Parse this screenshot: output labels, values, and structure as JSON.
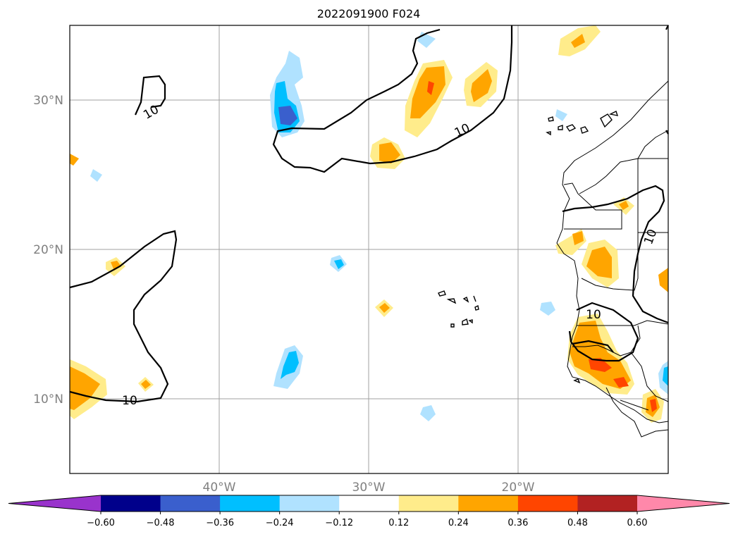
{
  "map": {
    "title": "2022091900 F024",
    "lat_labels": [
      "30°N",
      "20°N",
      "10°N"
    ],
    "lon_labels": [
      "40°W",
      "30°W",
      "20°W"
    ],
    "contour_label": "10",
    "extent": {
      "lon_min": -50,
      "lon_max": -10,
      "lat_min": 5,
      "lat_max": 35
    }
  },
  "colorbar": {
    "ticks": [
      "−0.60",
      "−0.48",
      "−0.36",
      "−0.24",
      "−0.12",
      "0.12",
      "0.24",
      "0.36",
      "0.48",
      "0.60"
    ],
    "colors": [
      "#9933cc",
      "#00008b",
      "#3a5fcd",
      "#00bfff",
      "#b0e2ff",
      "#ffffff",
      "#ffec8b",
      "#ffa500",
      "#ff4500",
      "#b22222",
      "#ff88aa"
    ]
  }
}
